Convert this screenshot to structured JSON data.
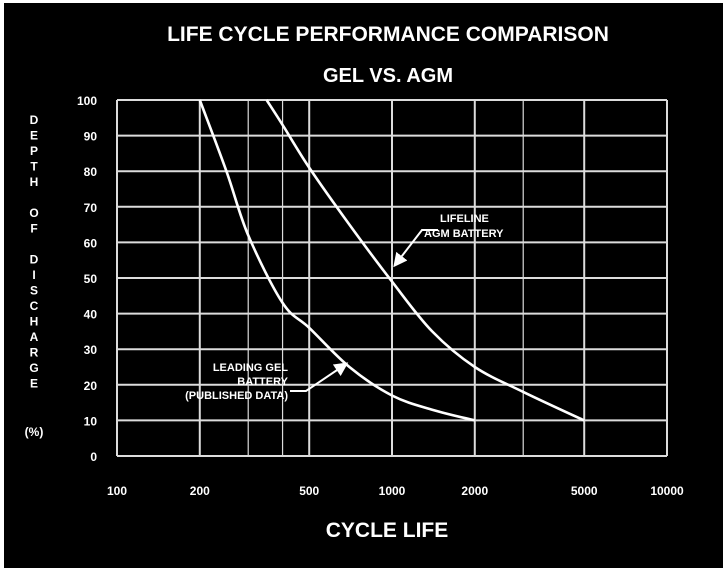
{
  "chart_data": {
    "type": "line",
    "title": "LIFE CYCLE PERFORMANCE COMPARISON",
    "subtitle": "GEL VS. AGM",
    "xlabel": "CYCLE LIFE",
    "ylabel_letters": [
      "D",
      "E",
      "P",
      "T",
      "H",
      "",
      "O",
      "F",
      "",
      "D",
      "I",
      "S",
      "C",
      "H",
      "A",
      "R",
      "G",
      "E"
    ],
    "ylabel_unit": "(%)",
    "x_scale": "log",
    "xlim": [
      100,
      10000
    ],
    "ylim": [
      0,
      100
    ],
    "x_ticks": [
      100,
      200,
      500,
      1000,
      2000,
      5000,
      10000
    ],
    "y_ticks": [
      0,
      10,
      20,
      30,
      40,
      50,
      60,
      70,
      80,
      90,
      100
    ],
    "grid": true,
    "series": [
      {
        "label_lines": [
          "LIFELINE",
          "AGM BATTERY"
        ],
        "color": "#ffffff",
        "points": [
          [
            350,
            100
          ],
          [
            400,
            93
          ],
          [
            500,
            81
          ],
          [
            700,
            65
          ],
          [
            1000,
            49
          ],
          [
            1400,
            35
          ],
          [
            2000,
            25
          ],
          [
            3000,
            18
          ],
          [
            5000,
            10
          ]
        ]
      },
      {
        "label_lines": [
          "LEADING GEL",
          "BATTERY",
          "(PUBLISHED DATA)"
        ],
        "color": "#ffffff",
        "points": [
          [
            200,
            100
          ],
          [
            250,
            80
          ],
          [
            300,
            62
          ],
          [
            400,
            43
          ],
          [
            500,
            36
          ],
          [
            700,
            25
          ],
          [
            1000,
            17
          ],
          [
            1400,
            13
          ],
          [
            2000,
            10
          ]
        ]
      }
    ]
  },
  "colors": {
    "background": "#000000",
    "grid": "#dcdcdc",
    "text": "#ffffff"
  }
}
